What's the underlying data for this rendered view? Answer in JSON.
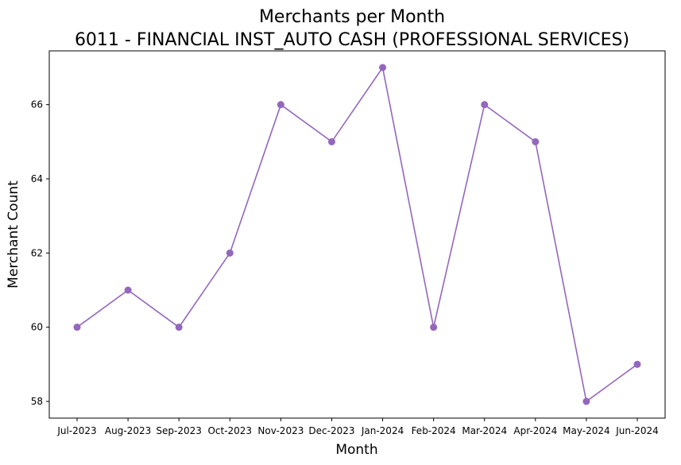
{
  "chart_data": {
    "type": "line",
    "title": "Merchants per Month",
    "subtitle": "6011 - FINANCIAL INST_AUTO CASH (PROFESSIONAL SERVICES)",
    "xlabel": "Month",
    "ylabel": "Merchant Count",
    "categories": [
      "Jul-2023",
      "Aug-2023",
      "Sep-2023",
      "Oct-2023",
      "Nov-2023",
      "Dec-2023",
      "Jan-2024",
      "Feb-2024",
      "Mar-2024",
      "Apr-2024",
      "May-2024",
      "Jun-2024"
    ],
    "series": [
      {
        "values": [
          60,
          61,
          60,
          62,
          66,
          65,
          67,
          60,
          66,
          65,
          58,
          59
        ],
        "color": "#9467bd",
        "marker": "circle"
      }
    ],
    "yticks": [
      "58",
      "60",
      "62",
      "64",
      "66"
    ],
    "ylim": [
      57.55,
      67.45
    ],
    "grid": false,
    "legend": "none"
  }
}
